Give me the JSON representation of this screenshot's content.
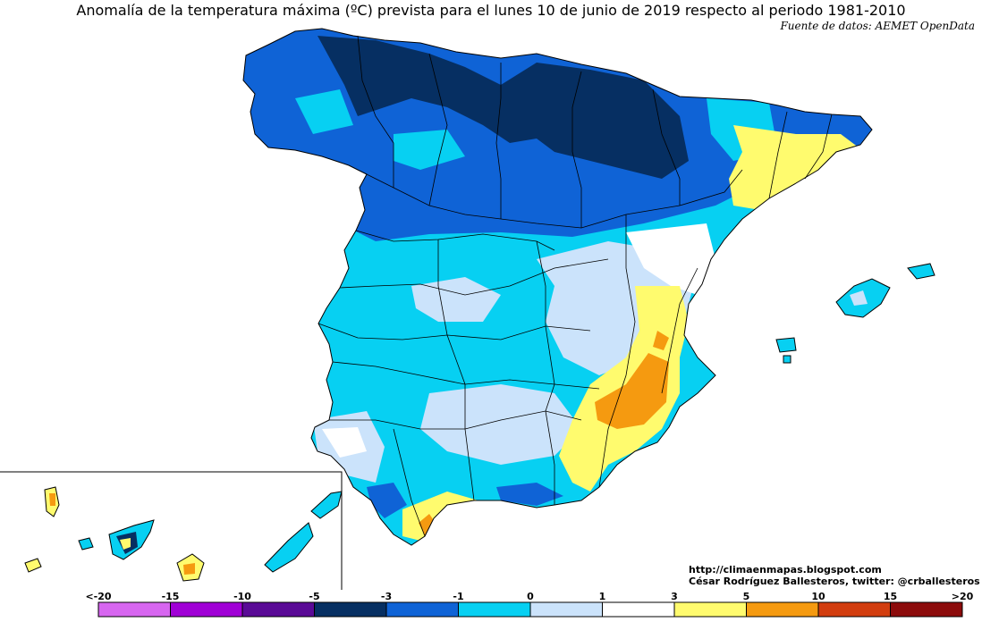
{
  "title": "Anomalía de la temperatura máxima (ºC) prevista para el lunes 10 de junio de 2019 respecto al periodo 1981-2010",
  "source": "Fuente de datos: AEMET OpenData",
  "credits": {
    "url": "http://climaenmapas.blogspot.com",
    "author": "César Rodríguez Ballesteros, twitter: @crballesteros"
  },
  "legend": {
    "labels": [
      "<-20",
      "-15",
      "-10",
      "-5",
      "-3",
      "-1",
      "0",
      "1",
      "3",
      "5",
      "10",
      "15",
      ">20"
    ],
    "colors": [
      "#d766f0",
      "#a000d6",
      "#5a0a96",
      "#062f62",
      "#0f63d6",
      "#07d0f2",
      "#cbe3fb",
      "#ffffff",
      "#fffb6e",
      "#f59a10",
      "#d23d0f",
      "#8c0b0b",
      "#6b3a0c"
    ]
  },
  "palette": {
    "deep_blue": "#062f62",
    "blue": "#0f63d6",
    "cyan": "#07d0f2",
    "light_blue": "#cbe3fb",
    "white": "#ffffff",
    "yellow": "#fffb6e",
    "orange": "#f59a10",
    "red": "#d23d0f"
  }
}
